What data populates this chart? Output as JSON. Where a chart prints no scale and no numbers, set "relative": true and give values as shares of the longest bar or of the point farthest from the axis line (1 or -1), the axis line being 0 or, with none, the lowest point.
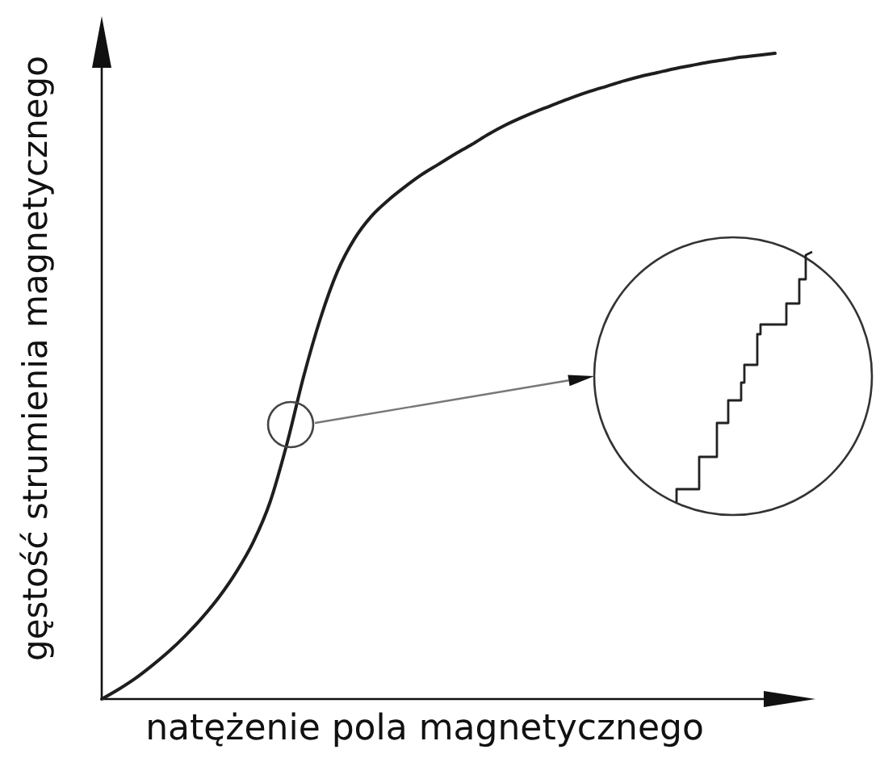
{
  "chart_data": {
    "type": "line",
    "xlabel": "natężenie pola magnetycznego",
    "ylabel": "gęstość strumienia magnetycznego",
    "relative": true,
    "color": "#1e1e1e",
    "categories": [
      null,
      null,
      null,
      null,
      null,
      null,
      null,
      null,
      null,
      null,
      null,
      null,
      null,
      null,
      null,
      null,
      null,
      null,
      null,
      null,
      null,
      null,
      null,
      null,
      null,
      null,
      null,
      null,
      null,
      null,
      null,
      null,
      null,
      null,
      null,
      null,
      null,
      null,
      null,
      null,
      null
    ],
    "values": [
      0,
      0.015,
      0.032,
      0.052,
      0.074,
      0.099,
      0.127,
      0.159,
      0.197,
      0.243,
      0.305,
      0.395,
      0.5,
      0.59,
      0.662,
      0.712,
      0.747,
      0.772,
      0.793,
      0.812,
      0.828,
      0.844,
      0.859,
      0.875,
      0.889,
      0.901,
      0.912,
      0.922,
      0.932,
      0.941,
      0.949,
      0.957,
      0.964,
      0.97,
      0.976,
      0.981,
      0.986,
      0.99,
      0.994,
      0.997,
      1
    ]
  }
}
